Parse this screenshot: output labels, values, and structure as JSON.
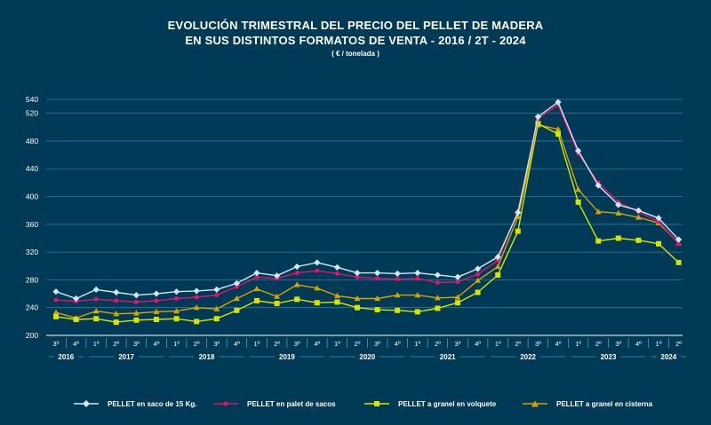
{
  "chart_data": {
    "type": "line",
    "title_line1": "EVOLUCIÓN TRIMESTRAL DEL PRECIO DEL PELLET DE MADERA",
    "title_line2": "EN SUS DISTINTOS FORMATOS DE VENTA - 2016 /  2T - 2024",
    "subtitle": "( € / tonelada )",
    "ylim": [
      200,
      540
    ],
    "yticks": [
      200,
      240,
      280,
      320,
      360,
      400,
      440,
      480,
      520,
      540
    ],
    "ytick_labels": [
      "200",
      "240",
      "280",
      "320",
      "360",
      "400",
      "440",
      "480",
      "520",
      "540"
    ],
    "grid": true,
    "legend_position": "bottom",
    "quarter_labels": [
      "3º",
      "4º",
      "1º",
      "2º",
      "3º",
      "4º",
      "1º",
      "2º",
      "3º",
      "4º",
      "1º",
      "2º",
      "3º",
      "4º",
      "1º",
      "2º",
      "3º",
      "4º",
      "1º",
      "2º",
      "3º",
      "4º",
      "1º",
      "2º",
      "3º",
      "4º",
      "1º",
      "2º",
      "3º",
      "4º",
      "1º",
      "2º"
    ],
    "year_groups": [
      {
        "label": "2016",
        "start": 0,
        "end": 1
      },
      {
        "label": "2017",
        "start": 2,
        "end": 5
      },
      {
        "label": "2018",
        "start": 6,
        "end": 9
      },
      {
        "label": "2019",
        "start": 10,
        "end": 13
      },
      {
        "label": "2020",
        "start": 14,
        "end": 17
      },
      {
        "label": "2021",
        "start": 18,
        "end": 21
      },
      {
        "label": "2022",
        "start": 22,
        "end": 25
      },
      {
        "label": "2023",
        "start": 26,
        "end": 29
      },
      {
        "label": "2024",
        "start": 30,
        "end": 31
      }
    ],
    "series": [
      {
        "name": "PELLET en saco de 15 Kg.",
        "color": "#cde9f7",
        "marker": "diamond",
        "values": [
          263,
          253,
          266,
          262,
          258,
          260,
          263,
          264,
          266,
          275,
          290,
          286,
          299,
          305,
          298,
          290,
          290,
          289,
          290,
          287,
          284,
          296,
          313,
          377,
          515,
          536,
          466,
          416,
          388,
          380,
          369,
          338
        ]
      },
      {
        "name": "PELLET  en palet de sacos",
        "color": "#e0146f",
        "marker": "circle",
        "values": [
          251,
          249,
          252,
          250,
          248,
          250,
          253,
          255,
          258,
          270,
          284,
          282,
          290,
          293,
          289,
          284,
          282,
          281,
          282,
          276,
          277,
          288,
          308,
          379,
          512,
          532,
          462,
          420,
          392,
          378,
          364,
          332
        ]
      },
      {
        "name": "PELLET a granel en volquete",
        "color": "#d6e400",
        "marker": "square",
        "values": [
          227,
          223,
          224,
          219,
          222,
          223,
          224,
          220,
          224,
          236,
          250,
          246,
          252,
          247,
          248,
          240,
          237,
          236,
          234,
          239,
          247,
          262,
          287,
          350,
          505,
          490,
          392,
          336,
          340,
          337,
          332,
          305
        ]
      },
      {
        "name": "PELLET a granel en cisterna",
        "color": "#d4a500",
        "marker": "triangle",
        "values": [
          233,
          225,
          235,
          231,
          232,
          234,
          235,
          240,
          238,
          253,
          267,
          256,
          273,
          268,
          257,
          253,
          253,
          258,
          258,
          254,
          255,
          279,
          299,
          371,
          503,
          497,
          410,
          378,
          376,
          370,
          362,
          333
        ]
      }
    ]
  }
}
